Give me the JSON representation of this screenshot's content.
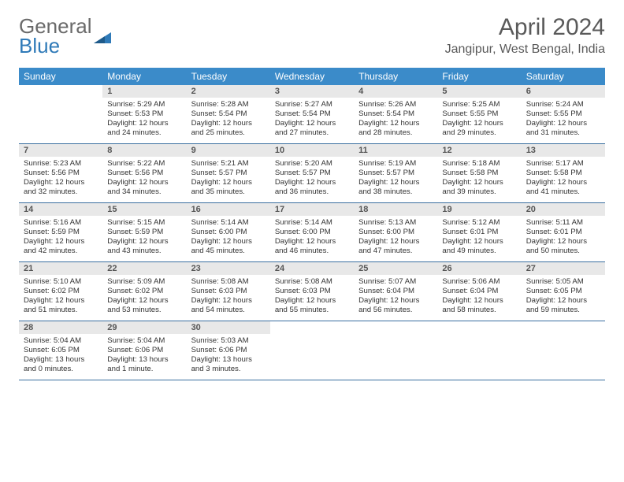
{
  "logo": {
    "part1": "General",
    "part2": "Blue"
  },
  "title": "April 2024",
  "location": "Jangipur, West Bengal, India",
  "colors": {
    "header_bg": "#3b8bc9",
    "header_fg": "#ffffff",
    "daynum_bg": "#e8e8e8",
    "row_border": "#3b6fa0",
    "logo_gray": "#6a6a6a",
    "logo_blue": "#2f7ab8"
  },
  "weekdays": [
    "Sunday",
    "Monday",
    "Tuesday",
    "Wednesday",
    "Thursday",
    "Friday",
    "Saturday"
  ],
  "weeks": [
    [
      null,
      {
        "n": "1",
        "sr": "Sunrise: 5:29 AM",
        "ss": "Sunset: 5:53 PM",
        "dl1": "Daylight: 12 hours",
        "dl2": "and 24 minutes."
      },
      {
        "n": "2",
        "sr": "Sunrise: 5:28 AM",
        "ss": "Sunset: 5:54 PM",
        "dl1": "Daylight: 12 hours",
        "dl2": "and 25 minutes."
      },
      {
        "n": "3",
        "sr": "Sunrise: 5:27 AM",
        "ss": "Sunset: 5:54 PM",
        "dl1": "Daylight: 12 hours",
        "dl2": "and 27 minutes."
      },
      {
        "n": "4",
        "sr": "Sunrise: 5:26 AM",
        "ss": "Sunset: 5:54 PM",
        "dl1": "Daylight: 12 hours",
        "dl2": "and 28 minutes."
      },
      {
        "n": "5",
        "sr": "Sunrise: 5:25 AM",
        "ss": "Sunset: 5:55 PM",
        "dl1": "Daylight: 12 hours",
        "dl2": "and 29 minutes."
      },
      {
        "n": "6",
        "sr": "Sunrise: 5:24 AM",
        "ss": "Sunset: 5:55 PM",
        "dl1": "Daylight: 12 hours",
        "dl2": "and 31 minutes."
      }
    ],
    [
      {
        "n": "7",
        "sr": "Sunrise: 5:23 AM",
        "ss": "Sunset: 5:56 PM",
        "dl1": "Daylight: 12 hours",
        "dl2": "and 32 minutes."
      },
      {
        "n": "8",
        "sr": "Sunrise: 5:22 AM",
        "ss": "Sunset: 5:56 PM",
        "dl1": "Daylight: 12 hours",
        "dl2": "and 34 minutes."
      },
      {
        "n": "9",
        "sr": "Sunrise: 5:21 AM",
        "ss": "Sunset: 5:57 PM",
        "dl1": "Daylight: 12 hours",
        "dl2": "and 35 minutes."
      },
      {
        "n": "10",
        "sr": "Sunrise: 5:20 AM",
        "ss": "Sunset: 5:57 PM",
        "dl1": "Daylight: 12 hours",
        "dl2": "and 36 minutes."
      },
      {
        "n": "11",
        "sr": "Sunrise: 5:19 AM",
        "ss": "Sunset: 5:57 PM",
        "dl1": "Daylight: 12 hours",
        "dl2": "and 38 minutes."
      },
      {
        "n": "12",
        "sr": "Sunrise: 5:18 AM",
        "ss": "Sunset: 5:58 PM",
        "dl1": "Daylight: 12 hours",
        "dl2": "and 39 minutes."
      },
      {
        "n": "13",
        "sr": "Sunrise: 5:17 AM",
        "ss": "Sunset: 5:58 PM",
        "dl1": "Daylight: 12 hours",
        "dl2": "and 41 minutes."
      }
    ],
    [
      {
        "n": "14",
        "sr": "Sunrise: 5:16 AM",
        "ss": "Sunset: 5:59 PM",
        "dl1": "Daylight: 12 hours",
        "dl2": "and 42 minutes."
      },
      {
        "n": "15",
        "sr": "Sunrise: 5:15 AM",
        "ss": "Sunset: 5:59 PM",
        "dl1": "Daylight: 12 hours",
        "dl2": "and 43 minutes."
      },
      {
        "n": "16",
        "sr": "Sunrise: 5:14 AM",
        "ss": "Sunset: 6:00 PM",
        "dl1": "Daylight: 12 hours",
        "dl2": "and 45 minutes."
      },
      {
        "n": "17",
        "sr": "Sunrise: 5:14 AM",
        "ss": "Sunset: 6:00 PM",
        "dl1": "Daylight: 12 hours",
        "dl2": "and 46 minutes."
      },
      {
        "n": "18",
        "sr": "Sunrise: 5:13 AM",
        "ss": "Sunset: 6:00 PM",
        "dl1": "Daylight: 12 hours",
        "dl2": "and 47 minutes."
      },
      {
        "n": "19",
        "sr": "Sunrise: 5:12 AM",
        "ss": "Sunset: 6:01 PM",
        "dl1": "Daylight: 12 hours",
        "dl2": "and 49 minutes."
      },
      {
        "n": "20",
        "sr": "Sunrise: 5:11 AM",
        "ss": "Sunset: 6:01 PM",
        "dl1": "Daylight: 12 hours",
        "dl2": "and 50 minutes."
      }
    ],
    [
      {
        "n": "21",
        "sr": "Sunrise: 5:10 AM",
        "ss": "Sunset: 6:02 PM",
        "dl1": "Daylight: 12 hours",
        "dl2": "and 51 minutes."
      },
      {
        "n": "22",
        "sr": "Sunrise: 5:09 AM",
        "ss": "Sunset: 6:02 PM",
        "dl1": "Daylight: 12 hours",
        "dl2": "and 53 minutes."
      },
      {
        "n": "23",
        "sr": "Sunrise: 5:08 AM",
        "ss": "Sunset: 6:03 PM",
        "dl1": "Daylight: 12 hours",
        "dl2": "and 54 minutes."
      },
      {
        "n": "24",
        "sr": "Sunrise: 5:08 AM",
        "ss": "Sunset: 6:03 PM",
        "dl1": "Daylight: 12 hours",
        "dl2": "and 55 minutes."
      },
      {
        "n": "25",
        "sr": "Sunrise: 5:07 AM",
        "ss": "Sunset: 6:04 PM",
        "dl1": "Daylight: 12 hours",
        "dl2": "and 56 minutes."
      },
      {
        "n": "26",
        "sr": "Sunrise: 5:06 AM",
        "ss": "Sunset: 6:04 PM",
        "dl1": "Daylight: 12 hours",
        "dl2": "and 58 minutes."
      },
      {
        "n": "27",
        "sr": "Sunrise: 5:05 AM",
        "ss": "Sunset: 6:05 PM",
        "dl1": "Daylight: 12 hours",
        "dl2": "and 59 minutes."
      }
    ],
    [
      {
        "n": "28",
        "sr": "Sunrise: 5:04 AM",
        "ss": "Sunset: 6:05 PM",
        "dl1": "Daylight: 13 hours",
        "dl2": "and 0 minutes."
      },
      {
        "n": "29",
        "sr": "Sunrise: 5:04 AM",
        "ss": "Sunset: 6:06 PM",
        "dl1": "Daylight: 13 hours",
        "dl2": "and 1 minute."
      },
      {
        "n": "30",
        "sr": "Sunrise: 5:03 AM",
        "ss": "Sunset: 6:06 PM",
        "dl1": "Daylight: 13 hours",
        "dl2": "and 3 minutes."
      },
      null,
      null,
      null,
      null
    ]
  ]
}
